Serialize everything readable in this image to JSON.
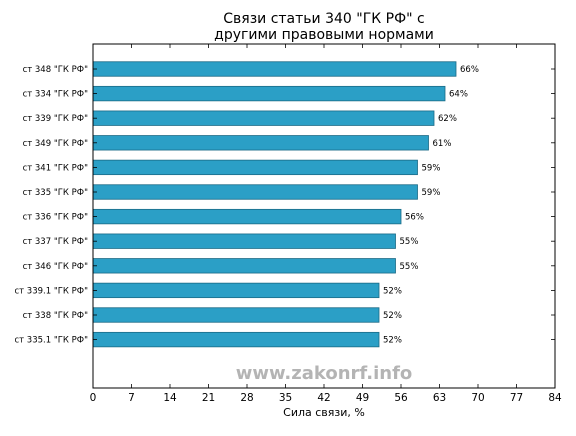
{
  "chart_data": {
    "type": "bar",
    "orientation": "horizontal",
    "title_lines": [
      "Связи статьи 340 \"ГК РФ\" с",
      "другими правовыми нормами"
    ],
    "xlabel": "Сила связи, %",
    "ylabel": "",
    "xlim": [
      0,
      84
    ],
    "xticks": [
      "0",
      "7",
      "14",
      "21",
      "28",
      "35",
      "42",
      "49",
      "56",
      "63",
      "70",
      "77",
      "84"
    ],
    "grid": false,
    "categories": [
      "ст 348 \"ГК РФ\"",
      "ст 334 \"ГК РФ\"",
      "ст 339 \"ГК РФ\"",
      "ст 349 \"ГК РФ\"",
      "ст 341 \"ГК РФ\"",
      "ст 335 \"ГК РФ\"",
      "ст 336 \"ГК РФ\"",
      "ст 337 \"ГК РФ\"",
      "ст 346 \"ГК РФ\"",
      "ст 339.1 \"ГК РФ\"",
      "ст 338 \"ГК РФ\"",
      "ст 335.1 \"ГК РФ\""
    ],
    "values": [
      66,
      64,
      62,
      61,
      59,
      59,
      56,
      55,
      55,
      52,
      52,
      52
    ],
    "value_labels": [
      "66%",
      "64%",
      "62%",
      "61%",
      "59%",
      "59%",
      "56%",
      "55%",
      "55%",
      "52%",
      "52%",
      "52%"
    ],
    "bar_color": "#2b9fc6",
    "bar_edge_color": "#1a6a86"
  },
  "watermark": "www.zakonrf.info"
}
